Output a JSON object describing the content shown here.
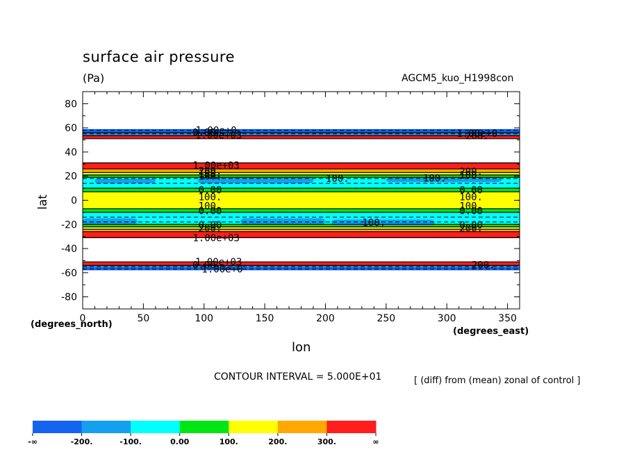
{
  "header": {
    "title": "surface air pressure",
    "units": "(Pa)",
    "run_id": "AGCM5_kuo_H1998con"
  },
  "axes": {
    "xlabel": "lon",
    "ylabel": "lat",
    "x_units": "(degrees_east)",
    "y_units": "(degrees_north)"
  },
  "footer": {
    "contour_interval": "CONTOUR INTERVAL = 5.000E+01",
    "note": "[ (diff) from (mean) zonal of control ]"
  },
  "colorbar": {
    "labels": [
      "-∞",
      "-200.",
      "-100.",
      "0.00",
      "100.",
      "200.",
      "300.",
      "∞"
    ],
    "colors": [
      "#1464f0",
      "#14a0f0",
      "#00ffff",
      "#00e614",
      "#ffff00",
      "#ffa800",
      "#ff1e1e"
    ]
  },
  "chart_data": {
    "type": "contour",
    "title": "surface air pressure",
    "xlabel": "lon",
    "ylabel": "lat",
    "xlim": [
      0,
      360
    ],
    "ylim": [
      -90,
      90
    ],
    "x_ticks": [
      0,
      50,
      100,
      150,
      200,
      250,
      300,
      350
    ],
    "y_ticks": [
      -80,
      -60,
      -40,
      -20,
      0,
      20,
      40,
      60,
      80
    ],
    "contour_interval": 50,
    "bands": [
      {
        "lat_min": 55,
        "lat_max": 59,
        "color": "#1464f0"
      },
      {
        "lat_min": 54,
        "lat_max": 55.5,
        "color": "#14a0f0"
      },
      {
        "lat_min": 51,
        "lat_max": 54,
        "color": "#ff1e1e"
      },
      {
        "lat_min": 26,
        "lat_max": 31,
        "color": "#ff1e1e"
      },
      {
        "lat_min": 23,
        "lat_max": 26,
        "color": "#ffa800"
      },
      {
        "lat_min": 21,
        "lat_max": 23,
        "color": "#ffff00"
      },
      {
        "lat_min": 19,
        "lat_max": 21,
        "color": "#00e614"
      },
      {
        "lat_min": 10,
        "lat_max": 19,
        "color": "#00ffff"
      },
      {
        "lat_min": 7,
        "lat_max": 10,
        "color": "#00e614"
      },
      {
        "lat_min": -7,
        "lat_max": 7,
        "color": "#ffff00"
      },
      {
        "lat_min": -10,
        "lat_max": -7,
        "color": "#00e614"
      },
      {
        "lat_min": -20,
        "lat_max": -10,
        "color": "#00ffff"
      },
      {
        "lat_min": -22,
        "lat_max": -20,
        "color": "#00e614"
      },
      {
        "lat_min": -24,
        "lat_max": -22,
        "color": "#ffff00"
      },
      {
        "lat_min": -26,
        "lat_max": -24,
        "color": "#ffa800"
      },
      {
        "lat_min": -31,
        "lat_max": -26,
        "color": "#ff1e1e"
      },
      {
        "lat_min": -54,
        "lat_max": -51,
        "color": "#ff1e1e"
      },
      {
        "lat_min": -55.5,
        "lat_max": -54,
        "color": "#14a0f0"
      },
      {
        "lat_min": -58,
        "lat_max": -55.5,
        "color": "#1464f0"
      }
    ],
    "patches": [
      {
        "lon_min": 10,
        "lon_max": 60,
        "lat_min": 14,
        "lat_max": 18,
        "color": "#14a0f0"
      },
      {
        "lon_min": 95,
        "lon_max": 190,
        "lat_min": 14,
        "lat_max": 19,
        "color": "#14a0f0"
      },
      {
        "lon_min": 250,
        "lon_max": 345,
        "lat_min": 15,
        "lat_max": 19,
        "color": "#14a0f0"
      },
      {
        "lon_min": 0,
        "lon_max": 45,
        "lat_min": -20,
        "lat_max": -15,
        "color": "#14a0f0"
      },
      {
        "lon_min": 130,
        "lon_max": 200,
        "lat_min": -20,
        "lat_max": -15,
        "color": "#14a0f0"
      },
      {
        "lon_min": 205,
        "lon_max": 290,
        "lat_min": -21,
        "lat_max": -16,
        "color": "#14a0f0"
      }
    ],
    "solid_contours": [
      56,
      53.5,
      51,
      31,
      26,
      23,
      21,
      19,
      10,
      7,
      -7,
      -10,
      -20,
      -22,
      -24,
      -26,
      -31,
      -51,
      -54
    ],
    "dashed_contours": [
      58,
      55,
      18,
      14,
      -14,
      -18,
      -55,
      -57
    ],
    "contour_labels": [
      {
        "lon": 110,
        "lat": 58,
        "text": "1.00e+0"
      },
      {
        "lon": 100,
        "lat": 56.5,
        "text": "0.00"
      },
      {
        "lon": 112,
        "lat": 54,
        "text": "1.00e+03"
      },
      {
        "lon": 325,
        "lat": 55.5,
        "text": "1.00e+0"
      },
      {
        "lon": 325,
        "lat": 53.5,
        "text": "200."
      },
      {
        "lon": 110,
        "lat": 29,
        "text": "1.00e+03"
      },
      {
        "lon": 105,
        "lat": 24.5,
        "text": "200."
      },
      {
        "lon": 105,
        "lat": 22,
        "text": "100."
      },
      {
        "lon": 105,
        "lat": 20,
        "text": "100."
      },
      {
        "lon": 320,
        "lat": 24,
        "text": "200."
      },
      {
        "lon": 320,
        "lat": 21,
        "text": "100."
      },
      {
        "lon": 210,
        "lat": 18,
        "text": "100."
      },
      {
        "lon": 290,
        "lat": 18.5,
        "text": "100."
      },
      {
        "lon": 105,
        "lat": 8.5,
        "text": "0.00"
      },
      {
        "lon": 105,
        "lat": 3,
        "text": "100."
      },
      {
        "lon": 105,
        "lat": -4.5,
        "text": "100."
      },
      {
        "lon": 105,
        "lat": -8.5,
        "text": "0.00"
      },
      {
        "lon": 320,
        "lat": 8.5,
        "text": "0.00"
      },
      {
        "lon": 320,
        "lat": 3,
        "text": "100."
      },
      {
        "lon": 320,
        "lat": -4.5,
        "text": "100."
      },
      {
        "lon": 320,
        "lat": -8.5,
        "text": "0.00"
      },
      {
        "lon": 240,
        "lat": -18.5,
        "text": "100."
      },
      {
        "lon": 105,
        "lat": -20.5,
        "text": "0.00"
      },
      {
        "lon": 105,
        "lat": -23,
        "text": "200."
      },
      {
        "lon": 320,
        "lat": -20.5,
        "text": "0.00"
      },
      {
        "lon": 320,
        "lat": -23,
        "text": "200."
      },
      {
        "lon": 110,
        "lat": -31,
        "text": "1.00e+03"
      },
      {
        "lon": 112,
        "lat": -51,
        "text": "1.00e+03"
      },
      {
        "lon": 100,
        "lat": -53.5,
        "text": "0.00"
      },
      {
        "lon": 115,
        "lat": -57,
        "text": "1.00e+0"
      },
      {
        "lon": 330,
        "lat": -53.5,
        "text": "200."
      }
    ]
  }
}
